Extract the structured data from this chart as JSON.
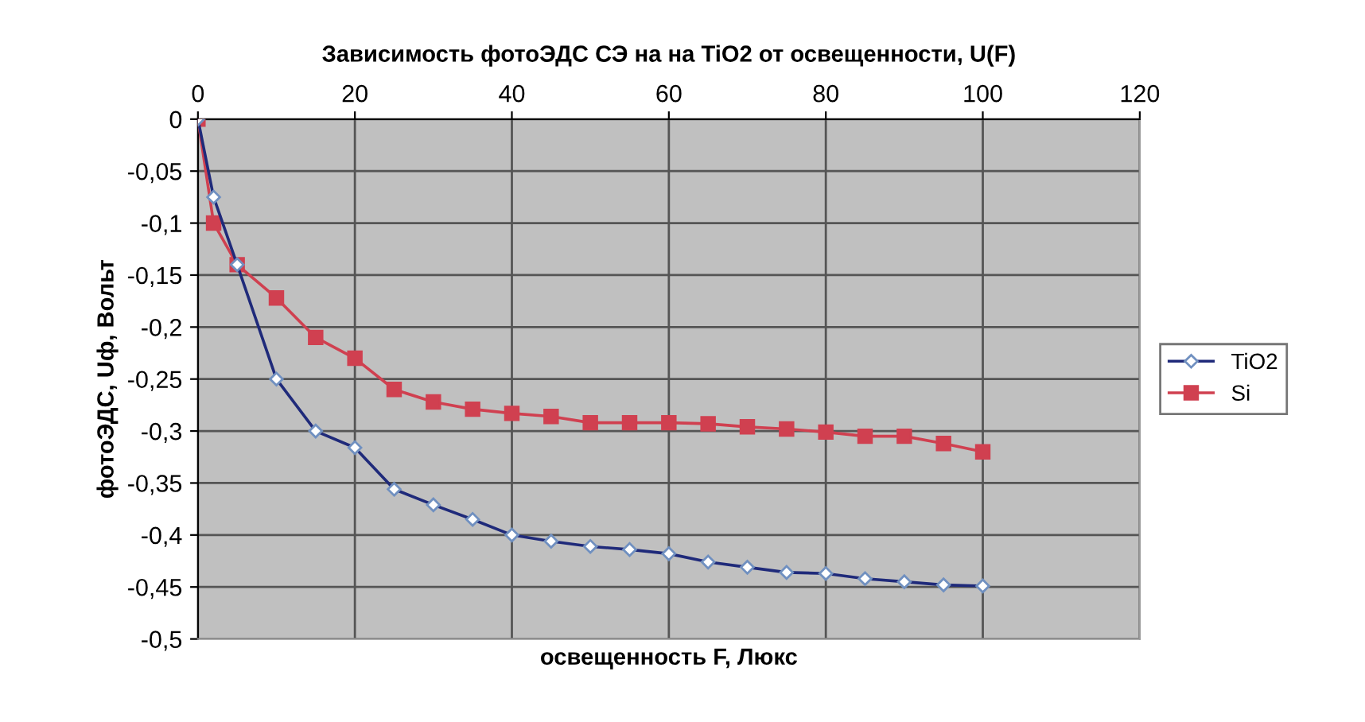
{
  "chart_data": {
    "type": "line",
    "title": "Зависимость фотоЭДС СЭ на на TiO2 от освещенности, U(F)",
    "xlabel": "освещенность F, Люкс",
    "ylabel": "фотоЭДС, Uф, Вольт",
    "x": [
      0,
      2,
      5,
      10,
      15,
      20,
      25,
      30,
      35,
      40,
      45,
      50,
      55,
      60,
      65,
      70,
      75,
      80,
      85,
      90,
      95,
      100
    ],
    "series": [
      {
        "name": "TiO2",
        "color": "#1f2a7a",
        "marker": "diamond",
        "values": [
          0,
          -0.075,
          -0.14,
          -0.25,
          -0.3,
          -0.316,
          -0.356,
          -0.371,
          -0.385,
          -0.4,
          -0.406,
          -0.411,
          -0.414,
          -0.418,
          -0.426,
          -0.431,
          -0.436,
          -0.437,
          -0.442,
          -0.445,
          -0.448,
          -0.449
        ]
      },
      {
        "name": "Si",
        "color": "#d04050",
        "marker": "square",
        "values": [
          0,
          -0.1,
          -0.14,
          -0.172,
          -0.21,
          -0.23,
          -0.26,
          -0.272,
          -0.279,
          -0.283,
          -0.286,
          -0.292,
          -0.292,
          -0.292,
          -0.293,
          -0.296,
          -0.298,
          -0.301,
          -0.305,
          -0.305,
          -0.312,
          -0.32
        ]
      }
    ],
    "xlim": [
      0,
      120
    ],
    "xticks": [
      0,
      20,
      40,
      60,
      80,
      100,
      120
    ],
    "ylim": [
      -0.5,
      0
    ],
    "yticks": [
      {
        "value": -0.5,
        "label": "-0,5"
      },
      {
        "value": -0.45,
        "label": "-0,45"
      },
      {
        "value": -0.4,
        "label": "-0,4"
      },
      {
        "value": -0.35,
        "label": "-0,35"
      },
      {
        "value": -0.3,
        "label": "-0,3"
      },
      {
        "value": -0.25,
        "label": "-0,25"
      },
      {
        "value": -0.2,
        "label": "-0,2"
      },
      {
        "value": -0.15,
        "label": "-0,15"
      },
      {
        "value": -0.1,
        "label": "-0,1"
      },
      {
        "value": -0.05,
        "label": "-0,05"
      },
      0
    ],
    "grid": true,
    "legend": "right",
    "line_style": "solid"
  }
}
